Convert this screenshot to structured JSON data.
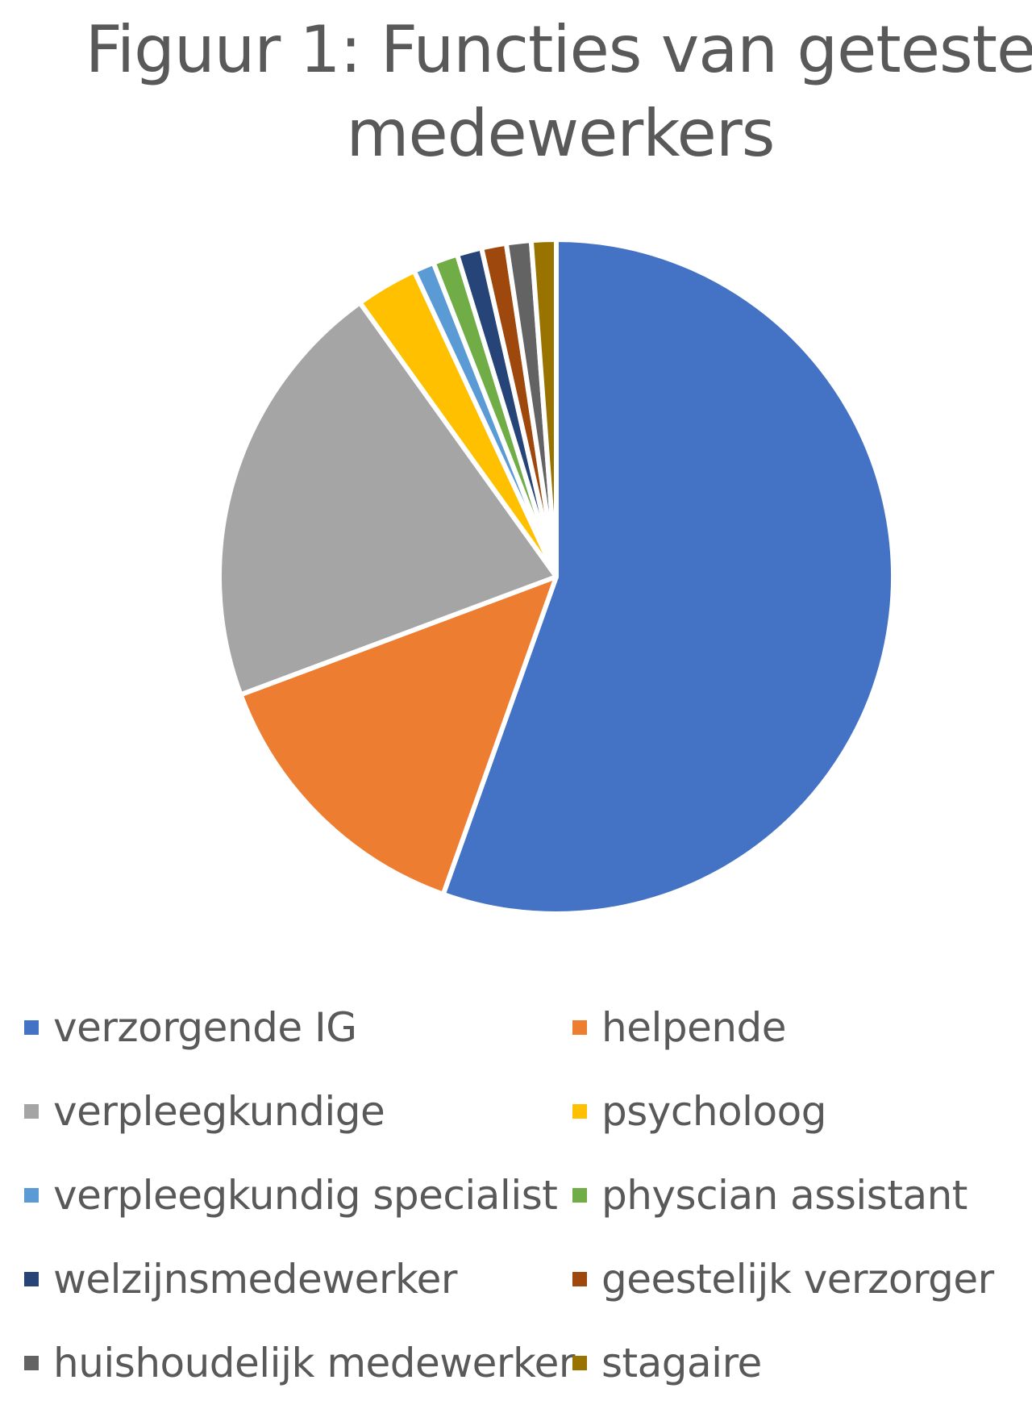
{
  "chart_data": {
    "type": "pie",
    "title": "Figuur 1: Functies van geteste medewerkers",
    "slices": [
      {
        "label": "verzorgende IG",
        "value": 56.0,
        "color": "#4472C4"
      },
      {
        "label": "helpende",
        "value": 14.0,
        "color": "#ED7D31"
      },
      {
        "label": "verpleegkundige",
        "value": 21.0,
        "color": "#A5A5A5"
      },
      {
        "label": "psycholoog",
        "value": 3.0,
        "color": "#FFC000"
      },
      {
        "label": "verpleegkundig specialist",
        "value": 1.0,
        "color": "#5B9BD5"
      },
      {
        "label": "physcian assistant",
        "value": 1.2,
        "color": "#70AD47"
      },
      {
        "label": "welzijnsmedewerker",
        "value": 1.2,
        "color": "#264478"
      },
      {
        "label": "geestelijk verzorger",
        "value": 1.2,
        "color": "#9E480E"
      },
      {
        "label": "huishoudelijk medewerker",
        "value": 1.2,
        "color": "#636363"
      },
      {
        "label": "stagaire",
        "value": 1.2,
        "color": "#997300"
      }
    ],
    "legend_position": "bottom"
  }
}
